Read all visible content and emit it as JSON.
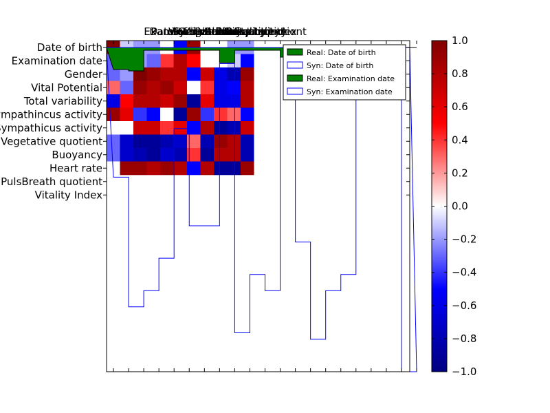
{
  "chart_data": {
    "type": "heatmap",
    "title": "",
    "row_labels": [
      "Date of birth",
      "Examination date",
      "Gender",
      "Vital Potential",
      "Total variability",
      "Parasympathincus activity",
      "Sympathicus activity",
      "Vegetative quotient",
      "Buoyancy",
      "Heart rate",
      "PulsBreath quotient",
      "Vitality Index"
    ],
    "col_labels": [
      "Date of birth",
      "Examination date",
      "Gender",
      "Vital Potential",
      "Total variability",
      "Parasympathincus activity",
      "Sympathicus activity",
      "Vegetative quotient",
      "Buoyancy",
      "Heart rate",
      "PulsBreath quotient",
      "Vitality Index"
    ],
    "colorbar": {
      "min": -1.0,
      "max": 1.0,
      "ticks": [
        "1.0",
        "0.8",
        "0.6",
        "0.4",
        "0.2",
        "0.0",
        "−0.2",
        "−0.4",
        "−0.6",
        "−0.8",
        "−1.0"
      ]
    },
    "matrix": [
      [
        1.0,
        -0.1,
        -0.2,
        -0.2,
        0.0,
        -0.5,
        0.9,
        0.0,
        0.0,
        -0.2,
        -0.2,
        0.0
      ],
      [
        -0.3,
        1.0,
        -0.2,
        -0.3,
        0.4,
        0.8,
        0.5,
        0.0,
        0.0,
        -0.1,
        -0.5,
        0.0
      ],
      [
        -0.3,
        -0.2,
        1.0,
        0.9,
        0.8,
        0.8,
        -0.5,
        0.7,
        -0.6,
        -0.8,
        0.9,
        0.0
      ],
      [
        0.3,
        -0.3,
        0.9,
        0.8,
        0.9,
        0.7,
        0.0,
        0.4,
        -0.6,
        -0.5,
        0.8,
        0.0
      ],
      [
        -0.6,
        0.5,
        0.8,
        0.8,
        0.7,
        0.9,
        -0.9,
        0.6,
        -0.6,
        -0.6,
        0.8,
        0.0
      ],
      [
        0.9,
        0.6,
        -0.4,
        -0.5,
        0.0,
        -0.9,
        0.9,
        -0.4,
        0.4,
        0.3,
        -0.5,
        0.0
      ],
      [
        0.0,
        0.0,
        0.7,
        0.7,
        0.4,
        0.6,
        -0.5,
        0.8,
        -0.9,
        -0.8,
        0.7,
        0.0
      ],
      [
        -0.3,
        -0.7,
        -0.9,
        -0.9,
        -0.8,
        -0.7,
        0.3,
        -0.8,
        0.9,
        0.8,
        -0.8,
        0.0
      ],
      [
        -0.3,
        -0.7,
        -0.8,
        -0.9,
        -0.7,
        -0.8,
        0.4,
        -0.9,
        0.8,
        0.8,
        -0.8,
        0.0
      ],
      [
        0.0,
        0.9,
        0.9,
        0.8,
        0.9,
        0.8,
        -0.5,
        0.8,
        -0.9,
        -0.9,
        0.9,
        0.0
      ],
      [
        0.0,
        0.0,
        0.0,
        0.0,
        0.0,
        0.0,
        0.0,
        0.0,
        0.0,
        0.0,
        0.0,
        0.0
      ],
      [
        0.0,
        0.0,
        0.0,
        0.0,
        0.0,
        0.0,
        0.0,
        0.0,
        0.0,
        0.0,
        0.0,
        0.0
      ]
    ],
    "legend": {
      "placement": "top-right",
      "entries": [
        {
          "label": "Real: Date of birth",
          "style": "filled",
          "color": "#008000"
        },
        {
          "label": "Syn: Date of birth",
          "style": "outline",
          "color": "#0000ff"
        },
        {
          "label": "Real: Examination date",
          "style": "filled",
          "color": "#008000"
        },
        {
          "label": "Syn: Examination date",
          "style": "outline",
          "color": "#0000ff"
        }
      ]
    },
    "real_step_counts": [
      0.2,
      0.15,
      0.9,
      0.9,
      0.9,
      0.9,
      0.9,
      0.45,
      0.9,
      0.9,
      0.9,
      0.65,
      1.0,
      1.0,
      0.85,
      1.0,
      1.0,
      1.0,
      1.0,
      1.0
    ],
    "syn_step_counts": [
      0.4,
      0.8,
      0.75,
      0.65,
      0.25,
      0.55,
      0.55,
      0.05,
      0.88,
      0.7,
      0.75,
      0.0,
      0.6,
      0.9,
      0.75,
      0.7,
      0.0,
      0.0,
      0.15,
      1.0
    ]
  }
}
